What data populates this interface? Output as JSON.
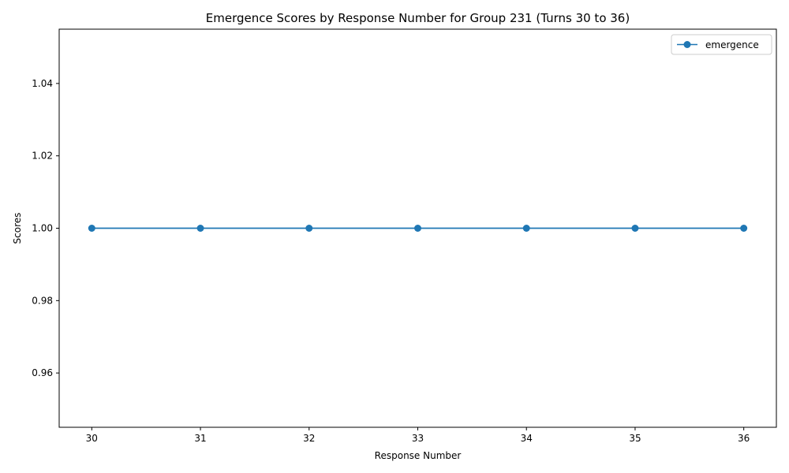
{
  "chart_data": {
    "type": "line",
    "title": "Emergence Scores by Response Number for Group 231 (Turns 30 to 36)",
    "xlabel": "Response Number",
    "ylabel": "Scores",
    "x": [
      30,
      31,
      32,
      33,
      34,
      35,
      36
    ],
    "xlim": [
      29.7,
      36.3
    ],
    "ylim": [
      0.945,
      1.055
    ],
    "xticks": [
      "30",
      "31",
      "32",
      "33",
      "34",
      "35",
      "36"
    ],
    "yticks": [
      "0.96",
      "0.98",
      "1.00",
      "1.02",
      "1.04"
    ],
    "ytick_values": [
      0.96,
      0.98,
      1.0,
      1.02,
      1.04
    ],
    "grid": false,
    "legend_position": "top-right",
    "series": [
      {
        "name": "emergence",
        "values": [
          1,
          1,
          1,
          1,
          1,
          1,
          1
        ],
        "color": "#1f77b4",
        "marker": "circle"
      }
    ]
  }
}
